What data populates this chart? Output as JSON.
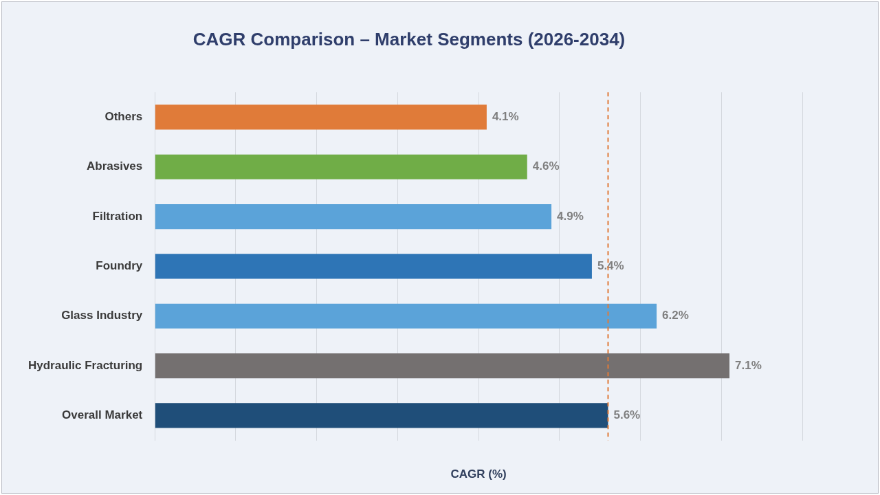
{
  "chart_data": {
    "type": "bar",
    "orientation": "horizontal",
    "title": "CAGR Comparison – Market Segments (2026-2034)",
    "xlabel": "CAGR (%)",
    "categories": [
      "Others",
      "Abrasives",
      "Filtration",
      "Foundry",
      "Glass Industry",
      "Hydraulic Fracturing",
      "Overall Market"
    ],
    "values": [
      4.1,
      4.6,
      4.9,
      5.4,
      6.2,
      7.1,
      5.6
    ],
    "colors": [
      "#e07b39",
      "#70ad47",
      "#5ba3d9",
      "#2e75b6",
      "#5ba3d9",
      "#747070",
      "#1f4e79"
    ],
    "value_labels": [
      "4.1%",
      "4.6%",
      "4.9%",
      "5.4%",
      "6.2%",
      "7.1%",
      "5.6%"
    ],
    "xlim": [
      0,
      8
    ],
    "xticks": [
      {
        "value": 0,
        "label": null
      },
      {
        "value": 1,
        "label": null
      },
      {
        "value": 2,
        "label": null
      },
      {
        "value": 3,
        "label": null
      },
      {
        "value": 4,
        "label": null
      },
      {
        "value": 5,
        "label": null
      },
      {
        "value": 6,
        "label": null
      },
      {
        "value": 7,
        "label": null
      },
      {
        "value": 8,
        "label": null
      }
    ],
    "tick_labels": "y",
    "grid": "x",
    "legend": false,
    "ref_lines": [
      {
        "axis": "x",
        "value": 5.6,
        "color": "#e07b39",
        "line_style": "dashed"
      }
    ]
  }
}
